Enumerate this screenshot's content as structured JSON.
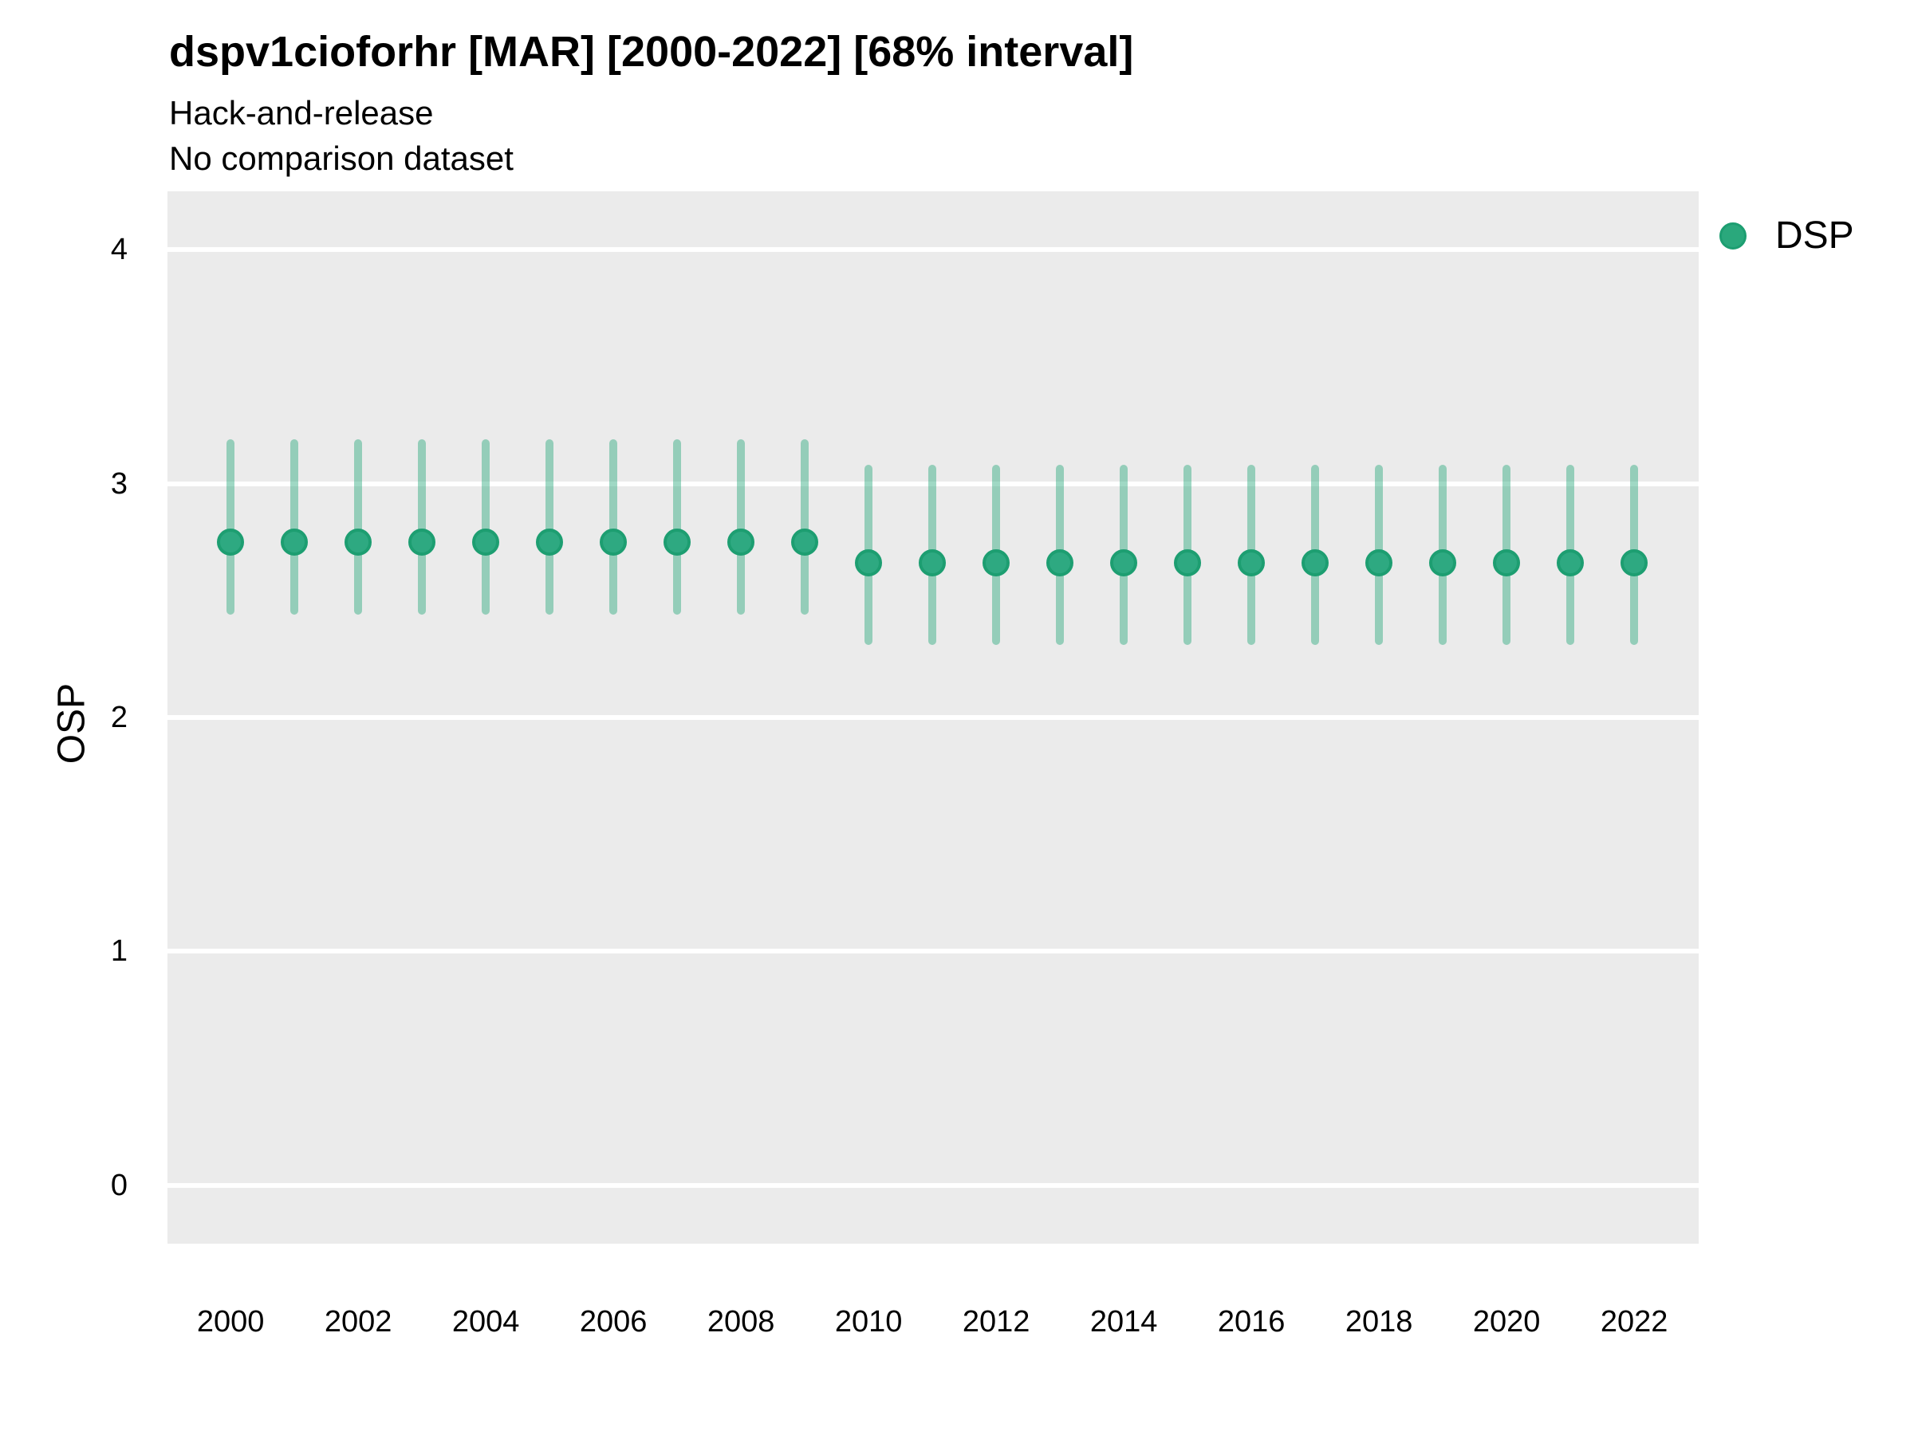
{
  "chart_data": {
    "type": "pointrange",
    "title": "dspv1cioforhr [MAR] [2000-2022] [68% interval]",
    "subtitle": "Hack-and-release",
    "note": "No comparison dataset",
    "xlabel": "",
    "ylabel": "OSP",
    "xlim": [
      1999.01,
      2023.01
    ],
    "ylim": [
      -0.25,
      4.25
    ],
    "yticks": [
      0,
      1,
      2,
      3,
      4
    ],
    "xticks": [
      2000,
      2002,
      2004,
      2006,
      2008,
      2010,
      2012,
      2014,
      2016,
      2018,
      2020,
      2022
    ],
    "grid": "horizontal-major-only",
    "panel_bg": "#ebebeb",
    "grid_color": "#ffffff",
    "legend_position": "top-right",
    "legend": [
      {
        "label": "DSP",
        "color": "#2aa87c"
      }
    ],
    "series": [
      {
        "name": "DSP",
        "interval": "68%",
        "point_color": "#2ea981",
        "point_edge_color": "#1d9e71",
        "interval_color": "rgba(42,168,124,0.45)",
        "points": [
          {
            "x": 2000,
            "lo": 2.44,
            "mid": 2.75,
            "hi": 3.19
          },
          {
            "x": 2001,
            "lo": 2.44,
            "mid": 2.75,
            "hi": 3.19
          },
          {
            "x": 2002,
            "lo": 2.44,
            "mid": 2.75,
            "hi": 3.19
          },
          {
            "x": 2003,
            "lo": 2.44,
            "mid": 2.75,
            "hi": 3.19
          },
          {
            "x": 2004,
            "lo": 2.44,
            "mid": 2.75,
            "hi": 3.19
          },
          {
            "x": 2005,
            "lo": 2.44,
            "mid": 2.75,
            "hi": 3.19
          },
          {
            "x": 2006,
            "lo": 2.44,
            "mid": 2.75,
            "hi": 3.19
          },
          {
            "x": 2007,
            "lo": 2.44,
            "mid": 2.75,
            "hi": 3.19
          },
          {
            "x": 2008,
            "lo": 2.44,
            "mid": 2.75,
            "hi": 3.19
          },
          {
            "x": 2009,
            "lo": 2.44,
            "mid": 2.75,
            "hi": 3.19
          },
          {
            "x": 2010,
            "lo": 2.31,
            "mid": 2.66,
            "hi": 3.08
          },
          {
            "x": 2011,
            "lo": 2.31,
            "mid": 2.66,
            "hi": 3.08
          },
          {
            "x": 2012,
            "lo": 2.31,
            "mid": 2.66,
            "hi": 3.08
          },
          {
            "x": 2013,
            "lo": 2.31,
            "mid": 2.66,
            "hi": 3.08
          },
          {
            "x": 2014,
            "lo": 2.31,
            "mid": 2.66,
            "hi": 3.08
          },
          {
            "x": 2015,
            "lo": 2.31,
            "mid": 2.66,
            "hi": 3.08
          },
          {
            "x": 2016,
            "lo": 2.31,
            "mid": 2.66,
            "hi": 3.08
          },
          {
            "x": 2017,
            "lo": 2.31,
            "mid": 2.66,
            "hi": 3.08
          },
          {
            "x": 2018,
            "lo": 2.31,
            "mid": 2.66,
            "hi": 3.08
          },
          {
            "x": 2019,
            "lo": 2.31,
            "mid": 2.66,
            "hi": 3.08
          },
          {
            "x": 2020,
            "lo": 2.31,
            "mid": 2.66,
            "hi": 3.08
          },
          {
            "x": 2021,
            "lo": 2.31,
            "mid": 2.66,
            "hi": 3.08
          },
          {
            "x": 2022,
            "lo": 2.31,
            "mid": 2.66,
            "hi": 3.08
          }
        ]
      }
    ]
  }
}
